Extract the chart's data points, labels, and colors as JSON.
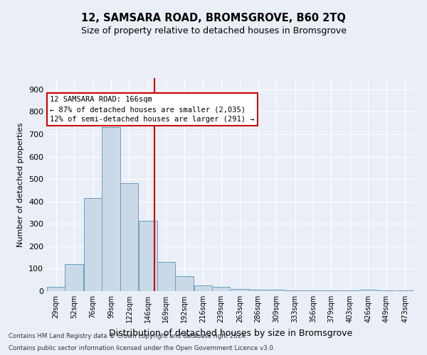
{
  "title1": "12, SAMSARA ROAD, BROMSGROVE, B60 2TQ",
  "title2": "Size of property relative to detached houses in Bromsgrove",
  "xlabel": "Distribution of detached houses by size in Bromsgrove",
  "ylabel": "Number of detached properties",
  "bar_color": "#c9d9e8",
  "bar_edge_color": "#6a9ec0",
  "vline_color": "#cc0000",
  "vline_x": 166,
  "bin_edges": [
    29,
    52,
    76,
    99,
    122,
    146,
    169,
    192,
    216,
    239,
    263,
    286,
    309,
    333,
    356,
    379,
    403,
    426,
    449,
    473,
    496
  ],
  "bar_heights": [
    20,
    120,
    415,
    730,
    480,
    315,
    130,
    65,
    25,
    20,
    10,
    5,
    5,
    2,
    2,
    2,
    2,
    5,
    2,
    2
  ],
  "annotation_text": "12 SAMSARA ROAD: 166sqm\n← 87% of detached houses are smaller (2,035)\n12% of semi-detached houses are larger (291) →",
  "annotation_box_color": "#ffffff",
  "annotation_box_edge": "#cc0000",
  "ylim": [
    0,
    950
  ],
  "yticks": [
    0,
    100,
    200,
    300,
    400,
    500,
    600,
    700,
    800,
    900
  ],
  "footer1": "Contains HM Land Registry data © Crown copyright and database right 2024.",
  "footer2": "Contains public sector information licensed under the Open Government Licence v3.0.",
  "bg_color": "#eaeff7",
  "plot_bg_color": "#eaeff7"
}
